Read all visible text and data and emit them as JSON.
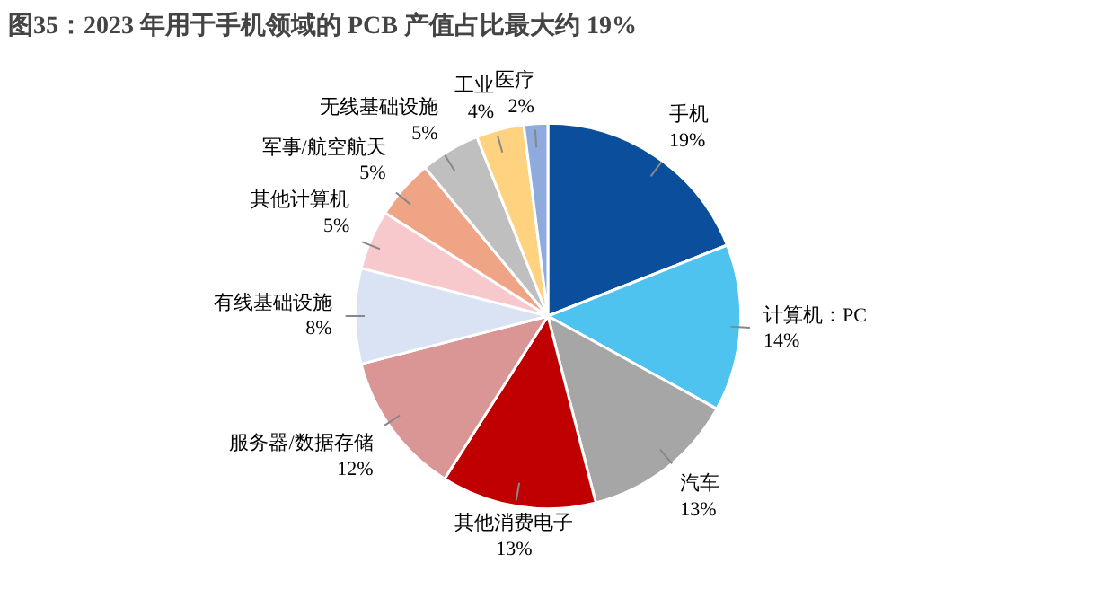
{
  "chart_data": {
    "type": "pie",
    "title": "图35：2023 年用于手机领域的 PCB 产值占比最大约 19%",
    "categories": [
      "手机",
      "计算机：PC",
      "汽车",
      "其他消费电子",
      "服务器/数据存储",
      "有线基础设施",
      "其他计算机",
      "军事/航空航天",
      "无线基础设施",
      "工业",
      "医疗"
    ],
    "values": [
      19,
      14,
      13,
      13,
      12,
      8,
      5,
      5,
      5,
      4,
      2
    ],
    "value_labels": [
      "19%",
      "14%",
      "13%",
      "13%",
      "12%",
      "8%",
      "5%",
      "5%",
      "5%",
      "4%",
      "2%"
    ],
    "colors": [
      "#0b4f9c",
      "#4fc3f0",
      "#a6a6a6",
      "#c00000",
      "#d99694",
      "#dae3f3",
      "#f8c9cc",
      "#f0a486",
      "#bfbfbf",
      "#ffd27f",
      "#8faadc"
    ]
  }
}
